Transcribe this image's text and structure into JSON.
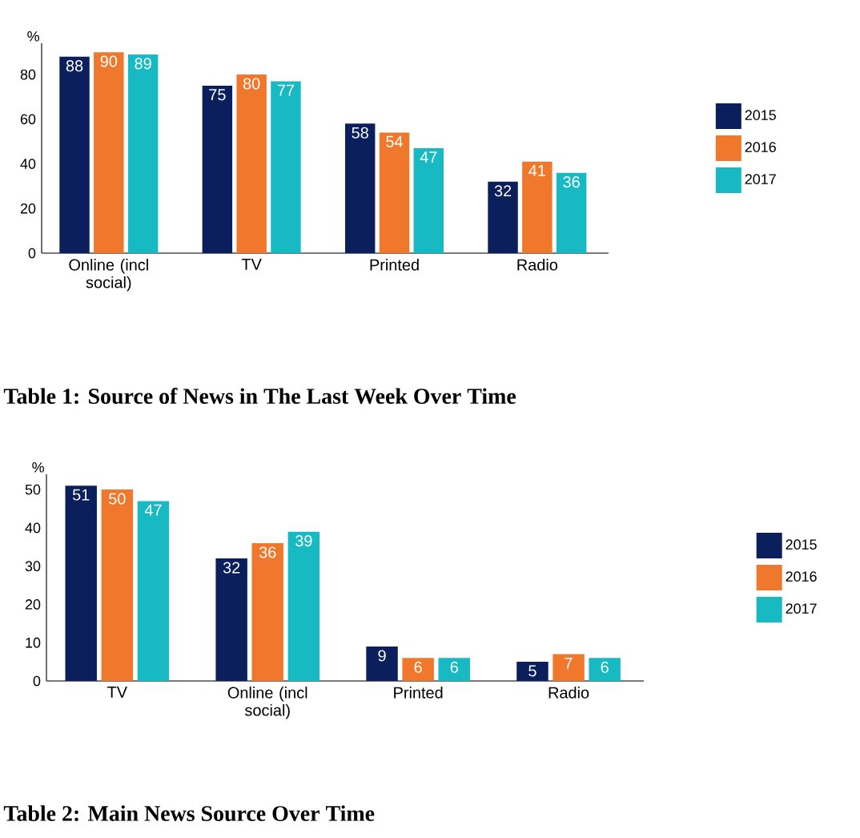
{
  "chart_data": [
    {
      "type": "bar",
      "ylabel": "%",
      "categories": [
        "Online (incl social)",
        "TV",
        "Printed",
        "Radio"
      ],
      "series": [
        {
          "name": "2015",
          "color": "#0b1f5c",
          "values": [
            88,
            75,
            58,
            32
          ]
        },
        {
          "name": "2016",
          "color": "#f0782c",
          "values": [
            90,
            80,
            54,
            41
          ]
        },
        {
          "name": "2017",
          "color": "#17b9c3",
          "values": [
            89,
            77,
            47,
            36
          ]
        }
      ],
      "ylim": [
        0,
        94
      ],
      "yticks": [
        0,
        20,
        40,
        60,
        80
      ],
      "data_labels": true,
      "legend": "right",
      "annotations": [
        "Table 1: Source of News in The Last Week Over Time"
      ]
    },
    {
      "type": "bar",
      "ylabel": "%",
      "categories": [
        "TV",
        "Online (incl social)",
        "Printed",
        "Radio"
      ],
      "series": [
        {
          "name": "2015",
          "color": "#0b1f5c",
          "values": [
            51,
            32,
            9,
            5
          ]
        },
        {
          "name": "2016",
          "color": "#f0782c",
          "values": [
            50,
            36,
            6,
            7
          ]
        },
        {
          "name": "2017",
          "color": "#17b9c3",
          "values": [
            47,
            39,
            6,
            6
          ]
        }
      ],
      "ylim": [
        0,
        54
      ],
      "yticks": [
        0,
        10,
        20,
        30,
        40,
        50
      ],
      "data_labels": true,
      "legend": "right",
      "annotations": [
        "Table 2: Main News Source Over Time"
      ]
    }
  ]
}
